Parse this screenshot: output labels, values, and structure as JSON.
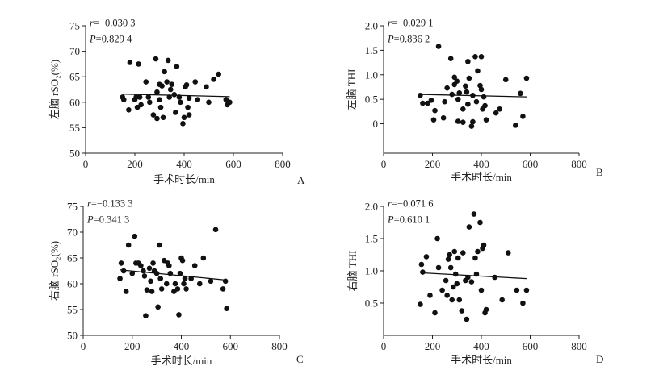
{
  "chart_data": [
    {
      "type": "scatter",
      "panel_label": "A",
      "ylabel": "左脑 rSO₂(%)",
      "xlabel": "手术时长/min",
      "xlim": [
        0,
        800
      ],
      "ylim": [
        50,
        75
      ],
      "xticks": [
        0,
        200,
        400,
        600,
        800
      ],
      "yticks": [
        50,
        55,
        60,
        65,
        70,
        75
      ],
      "stats": {
        "r_symbol": "r",
        "r_value": "=−0.030 3",
        "p_symbol": "P",
        "p_value": "=0.829 4"
      },
      "fit_line": {
        "x": [
          150,
          585
        ],
        "y": [
          61.6,
          61.1
        ]
      },
      "points": [
        [
          150,
          61
        ],
        [
          155,
          60.5
        ],
        [
          175,
          58.5
        ],
        [
          180,
          67.8
        ],
        [
          200,
          60.5
        ],
        [
          205,
          61
        ],
        [
          210,
          59
        ],
        [
          215,
          67.5
        ],
        [
          220,
          61
        ],
        [
          225,
          59.5
        ],
        [
          245,
          64
        ],
        [
          255,
          61
        ],
        [
          260,
          60
        ],
        [
          275,
          57.5
        ],
        [
          285,
          68.5
        ],
        [
          290,
          62
        ],
        [
          290,
          56.8
        ],
        [
          300,
          63.5
        ],
        [
          300,
          60.5
        ],
        [
          305,
          59
        ],
        [
          310,
          63.2
        ],
        [
          315,
          57
        ],
        [
          320,
          66
        ],
        [
          330,
          64
        ],
        [
          335,
          68.2
        ],
        [
          340,
          61
        ],
        [
          345,
          62.5
        ],
        [
          350,
          63.5
        ],
        [
          360,
          61.5
        ],
        [
          365,
          58
        ],
        [
          370,
          67
        ],
        [
          380,
          61
        ],
        [
          385,
          60
        ],
        [
          395,
          55.8
        ],
        [
          400,
          57
        ],
        [
          405,
          63
        ],
        [
          410,
          63.4
        ],
        [
          415,
          59
        ],
        [
          420,
          57.5
        ],
        [
          420,
          60.8
        ],
        [
          445,
          64
        ],
        [
          455,
          60.5
        ],
        [
          490,
          63
        ],
        [
          500,
          60
        ],
        [
          520,
          64.5
        ],
        [
          540,
          65.5
        ],
        [
          570,
          60.5
        ],
        [
          575,
          59.5
        ],
        [
          585,
          60
        ]
      ]
    },
    {
      "type": "scatter",
      "panel_label": "B",
      "ylabel": "左脑 THI",
      "xlabel": "手术时长/min",
      "xlim": [
        0,
        800
      ],
      "ylim": [
        -0.6,
        2.0
      ],
      "xticks": [
        0,
        200,
        400,
        600,
        800
      ],
      "yticks": [
        0,
        0.5,
        1.0,
        1.5,
        2.0
      ],
      "stats": {
        "r_symbol": "r",
        "r_value": "=−0.029 1",
        "p_symbol": "P",
        "p_value": "=0.836 2"
      },
      "fit_line": {
        "x": [
          150,
          585
        ],
        "y": [
          0.6,
          0.55
        ]
      },
      "points": [
        [
          150,
          0.58
        ],
        [
          160,
          0.42
        ],
        [
          180,
          0.42
        ],
        [
          195,
          0.48
        ],
        [
          205,
          0.08
        ],
        [
          210,
          0.27
        ],
        [
          225,
          1.58
        ],
        [
          245,
          0.12
        ],
        [
          250,
          0.45
        ],
        [
          260,
          0.73
        ],
        [
          275,
          1.33
        ],
        [
          280,
          0.6
        ],
        [
          290,
          0.95
        ],
        [
          290,
          0.8
        ],
        [
          300,
          0.87
        ],
        [
          305,
          0.5
        ],
        [
          305,
          0.05
        ],
        [
          310,
          0.63
        ],
        [
          325,
          0.3
        ],
        [
          325,
          0.03
        ],
        [
          335,
          0.77
        ],
        [
          340,
          0.65
        ],
        [
          345,
          0.4
        ],
        [
          345,
          1.27
        ],
        [
          350,
          0.93
        ],
        [
          360,
          -0.05
        ],
        [
          365,
          0.58
        ],
        [
          365,
          0.04
        ],
        [
          375,
          1.37
        ],
        [
          380,
          0.45
        ],
        [
          385,
          1.08
        ],
        [
          395,
          0.78
        ],
        [
          400,
          1.37
        ],
        [
          400,
          0.7
        ],
        [
          405,
          0.3
        ],
        [
          410,
          0.55
        ],
        [
          415,
          0.37
        ],
        [
          420,
          0.08
        ],
        [
          460,
          0.22
        ],
        [
          475,
          0.3
        ],
        [
          500,
          0.9
        ],
        [
          540,
          -0.03
        ],
        [
          560,
          0.62
        ],
        [
          570,
          0.15
        ],
        [
          585,
          0.93
        ]
      ]
    },
    {
      "type": "scatter",
      "panel_label": "C",
      "ylabel": "右脑 rSO₂(%)",
      "xlabel": "手术时长/min",
      "xlim": [
        0,
        800
      ],
      "ylim": [
        50,
        75
      ],
      "xticks": [
        0,
        200,
        400,
        600,
        800
      ],
      "yticks": [
        50,
        55,
        60,
        65,
        70,
        75
      ],
      "stats": {
        "r_symbol": "r",
        "r_value": "=−0.133 3",
        "p_symbol": "P",
        "p_value": "=0.341 3"
      },
      "fit_line": {
        "x": [
          150,
          585
        ],
        "y": [
          62.7,
          60.7
        ]
      },
      "points": [
        [
          150,
          61
        ],
        [
          155,
          64
        ],
        [
          165,
          62.5
        ],
        [
          175,
          58.5
        ],
        [
          185,
          67.5
        ],
        [
          200,
          62
        ],
        [
          210,
          69.2
        ],
        [
          215,
          64
        ],
        [
          225,
          64
        ],
        [
          235,
          63.5
        ],
        [
          245,
          62.5
        ],
        [
          250,
          61.5
        ],
        [
          255,
          53.8
        ],
        [
          260,
          58.8
        ],
        [
          270,
          63
        ],
        [
          275,
          60.5
        ],
        [
          280,
          58.5
        ],
        [
          285,
          64
        ],
        [
          290,
          62.5
        ],
        [
          300,
          62
        ],
        [
          305,
          55.5
        ],
        [
          310,
          67.5
        ],
        [
          315,
          61
        ],
        [
          320,
          59
        ],
        [
          330,
          64.5
        ],
        [
          340,
          60
        ],
        [
          345,
          64
        ],
        [
          350,
          63.5
        ],
        [
          355,
          62
        ],
        [
          370,
          58.5
        ],
        [
          375,
          60
        ],
        [
          385,
          59
        ],
        [
          390,
          54
        ],
        [
          395,
          62
        ],
        [
          400,
          65
        ],
        [
          405,
          64.5
        ],
        [
          410,
          60
        ],
        [
          415,
          61
        ],
        [
          420,
          59
        ],
        [
          440,
          61
        ],
        [
          455,
          63.5
        ],
        [
          475,
          60
        ],
        [
          490,
          65
        ],
        [
          520,
          60.5
        ],
        [
          540,
          70.5
        ],
        [
          570,
          59
        ],
        [
          580,
          60.5
        ],
        [
          585,
          55.2
        ]
      ]
    },
    {
      "type": "scatter",
      "panel_label": "D",
      "ylabel": "右脑 THI",
      "xlabel": "手术时长/min",
      "xlim": [
        0,
        800
      ],
      "ylim": [
        0,
        2.0
      ],
      "xticks": [
        0,
        200,
        400,
        600,
        800
      ],
      "yticks": [
        0.5,
        1.0,
        1.5,
        2.0
      ],
      "stats": {
        "r_symbol": "r",
        "r_value": "=−0.071 6",
        "p_symbol": "P",
        "p_value": "=0.610 1"
      },
      "fit_line": {
        "x": [
          150,
          585
        ],
        "y": [
          0.97,
          0.88
        ]
      },
      "points": [
        [
          150,
          0.48
        ],
        [
          155,
          1.1
        ],
        [
          160,
          0.98
        ],
        [
          175,
          1.22
        ],
        [
          190,
          0.62
        ],
        [
          210,
          0.35
        ],
        [
          220,
          1.5
        ],
        [
          225,
          1.05
        ],
        [
          240,
          0.7
        ],
        [
          255,
          0.85
        ],
        [
          260,
          0.62
        ],
        [
          265,
          1.18
        ],
        [
          270,
          1.25
        ],
        [
          275,
          1.05
        ],
        [
          280,
          0.55
        ],
        [
          285,
          0.75
        ],
        [
          290,
          1.3
        ],
        [
          295,
          0.95
        ],
        [
          300,
          0.8
        ],
        [
          305,
          1.2
        ],
        [
          310,
          0.55
        ],
        [
          320,
          0.38
        ],
        [
          325,
          1.28
        ],
        [
          335,
          0.85
        ],
        [
          340,
          0.25
        ],
        [
          345,
          0.9
        ],
        [
          350,
          1.68
        ],
        [
          360,
          0.83
        ],
        [
          370,
          1.88
        ],
        [
          375,
          1.2
        ],
        [
          380,
          0.95
        ],
        [
          385,
          1.3
        ],
        [
          395,
          1.75
        ],
        [
          400,
          0.7
        ],
        [
          405,
          1.35
        ],
        [
          410,
          1.4
        ],
        [
          415,
          0.35
        ],
        [
          420,
          0.4
        ],
        [
          455,
          0.9
        ],
        [
          485,
          0.55
        ],
        [
          510,
          1.28
        ],
        [
          545,
          0.7
        ],
        [
          570,
          0.5
        ],
        [
          585,
          0.7
        ]
      ]
    }
  ]
}
